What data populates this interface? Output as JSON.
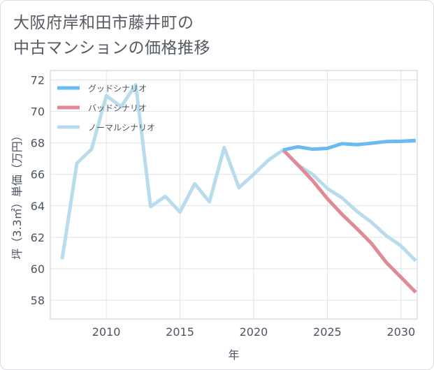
{
  "title_line1": "大阪府岸和田市藤井町の",
  "title_line2": "中古マンションの価格推移",
  "chart_data": {
    "type": "line",
    "title": "大阪府岸和田市藤井町の中古マンションの価格推移",
    "xlabel": "年",
    "ylabel": "坪（3.3㎡）単価（万円）",
    "xlim": [
      2006.2,
      2031.1
    ],
    "ylim": [
      56.8,
      72.6
    ],
    "xticks": [
      2010,
      2015,
      2020,
      2025,
      2030
    ],
    "yticks": [
      58,
      60,
      62,
      64,
      66,
      68,
      70,
      72
    ],
    "legend_position": "top-left",
    "series": [
      {
        "name": "グッドシナリオ",
        "color": "#6bbaf0",
        "x": [
          2022,
          2023,
          2024,
          2025,
          2026,
          2027,
          2028,
          2029,
          2030,
          2031
        ],
        "values": [
          67.55,
          67.75,
          67.6,
          67.65,
          67.95,
          67.88,
          67.98,
          68.08,
          68.1,
          68.15
        ]
      },
      {
        "name": "バッドシナリオ",
        "color": "#e08a96",
        "x": [
          2022,
          2023,
          2024,
          2025,
          2026,
          2027,
          2028,
          2029,
          2030,
          2031
        ],
        "values": [
          67.55,
          66.6,
          65.6,
          64.45,
          63.45,
          62.55,
          61.6,
          60.4,
          59.45,
          58.5
        ]
      },
      {
        "name": "ノーマルシナリオ",
        "color": "#b9dcec",
        "x": [
          2007,
          2008,
          2009,
          2010,
          2011,
          2012,
          2013,
          2014,
          2015,
          2016,
          2017,
          2018,
          2019,
          2020,
          2021,
          2022,
          2023,
          2024,
          2025,
          2026,
          2027,
          2028,
          2029,
          2030,
          2031
        ],
        "values": [
          60.6,
          66.7,
          67.6,
          71.0,
          70.3,
          71.7,
          63.95,
          64.6,
          63.6,
          65.4,
          64.25,
          67.7,
          65.15,
          66.0,
          66.9,
          67.55,
          66.6,
          66.0,
          65.1,
          64.5,
          63.65,
          62.95,
          62.1,
          61.45,
          60.5
        ]
      }
    ]
  }
}
